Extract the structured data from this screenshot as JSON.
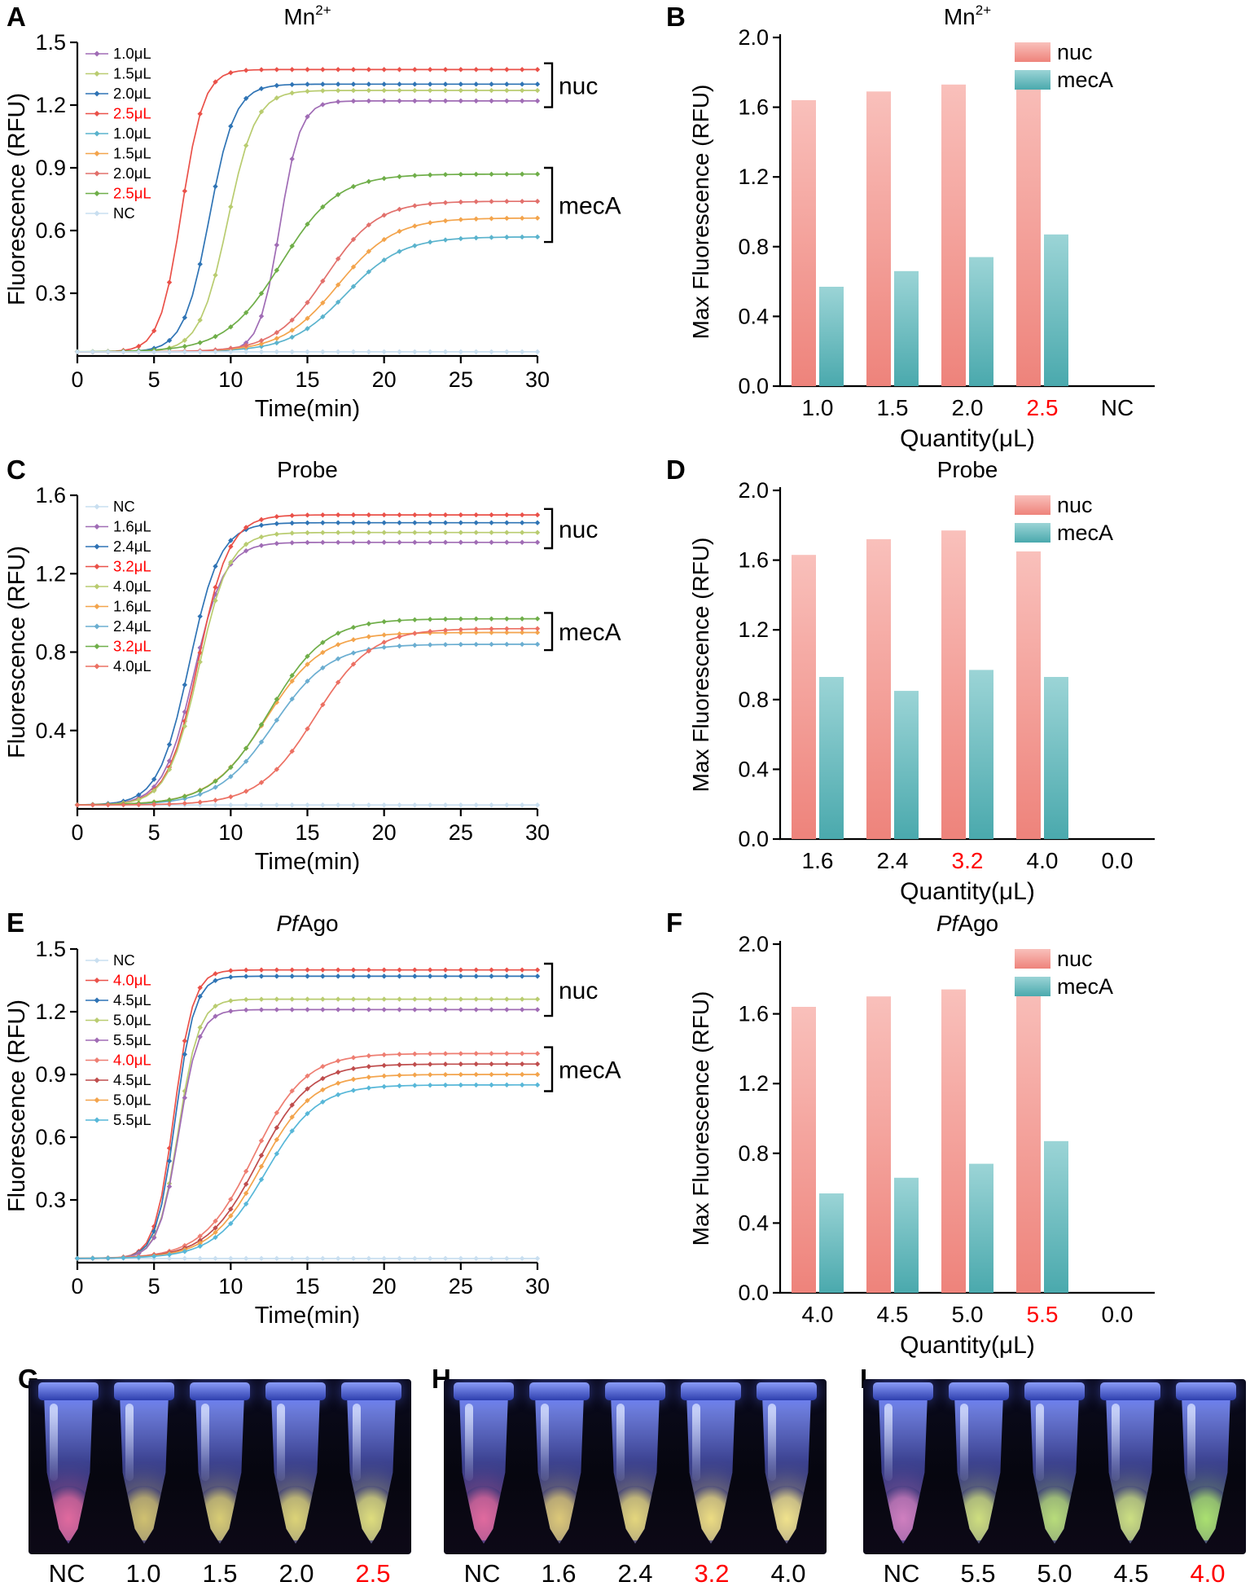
{
  "figure": {
    "panel_labels": [
      "A",
      "B",
      "C",
      "D",
      "E",
      "F",
      "G",
      "H",
      "I"
    ]
  },
  "colors": {
    "red_text": "#ff0000",
    "axis": "#000000"
  },
  "chart_data": [
    {
      "id": "A",
      "type": "line",
      "title": {
        "text": "Mn",
        "sup": "2+"
      },
      "xlabel": "Time(min)",
      "ylabel": "Fluorescence (RFU)",
      "xlim": [
        0,
        30
      ],
      "ylim": [
        0,
        1.5
      ],
      "xticks": [
        0,
        5,
        10,
        15,
        20,
        25,
        30
      ],
      "yticks": [
        0.3,
        0.6,
        0.9,
        1.2,
        1.5
      ],
      "ytick_labels": [
        "0.3",
        "0.6",
        "0.9",
        "1.2",
        "1.5"
      ],
      "series": [
        {
          "name": "1.0μL",
          "color": "#a06cb5",
          "red": false,
          "plateau": 1.22,
          "t50": 13.2,
          "k": 1.5
        },
        {
          "name": "1.5μL",
          "color": "#b9cc70",
          "red": false,
          "plateau": 1.27,
          "t50": 9.8,
          "k": 1.1
        },
        {
          "name": "2.0μL",
          "color": "#2f74b5",
          "red": false,
          "plateau": 1.3,
          "t50": 8.6,
          "k": 1.2
        },
        {
          "name": "2.5μL",
          "color": "#ea5149",
          "red": true,
          "plateau": 1.37,
          "t50": 6.8,
          "k": 1.4
        },
        {
          "name": "1.0μL",
          "color": "#5ab3cd",
          "red": false,
          "plateau": 0.57,
          "t50": 17.5,
          "k": 0.55
        },
        {
          "name": "1.5μL",
          "color": "#f3a44c",
          "red": false,
          "plateau": 0.66,
          "t50": 17.0,
          "k": 0.55
        },
        {
          "name": "2.0μL",
          "color": "#e2706c",
          "red": false,
          "plateau": 0.74,
          "t50": 16.2,
          "k": 0.6
        },
        {
          "name": "2.5μL",
          "color": "#6fae49",
          "red": true,
          "plateau": 0.87,
          "t50": 13.3,
          "k": 0.55
        },
        {
          "name": "NC",
          "color": "#c9dff0",
          "red": false,
          "flat": true,
          "plateau": 0.02,
          "t50": 0,
          "k": 0
        }
      ],
      "groups": [
        {
          "label": "nuc",
          "y_top": 1.4,
          "y_bottom": 1.19
        },
        {
          "label": "mecA",
          "y_top": 0.9,
          "y_bottom": 0.545
        }
      ]
    },
    {
      "id": "B",
      "type": "bar",
      "title": {
        "text": "Mn",
        "sup": "2+"
      },
      "xlabel": "Quantity(μL)",
      "ylabel": "Max Fluorescence (RFU)",
      "ylim": [
        0,
        2.0
      ],
      "yticks": [
        0.0,
        0.4,
        0.8,
        1.2,
        1.6,
        2.0
      ],
      "ytick_labels": [
        "0.0",
        "0.4",
        "0.8",
        "1.2",
        "1.6",
        "2.0"
      ],
      "categories": [
        {
          "label": "1.0",
          "red": false
        },
        {
          "label": "1.5",
          "red": false
        },
        {
          "label": "2.0",
          "red": false
        },
        {
          "label": "2.5",
          "red": true
        },
        {
          "label": "NC",
          "red": false
        }
      ],
      "series": [
        {
          "name": "nuc",
          "values": [
            1.64,
            1.69,
            1.73,
            1.81,
            0
          ],
          "color_top": "#f9c0bb",
          "color_bottom": "#ee837b"
        },
        {
          "name": "mecA",
          "values": [
            0.57,
            0.66,
            0.74,
            0.87,
            0
          ],
          "color_top": "#9bd4d6",
          "color_bottom": "#4aa9ad"
        }
      ]
    },
    {
      "id": "C",
      "type": "line",
      "title": {
        "text": "Probe"
      },
      "xlabel": "Time(min)",
      "ylabel": "Fluorescence (RFU)",
      "xlim": [
        0,
        30
      ],
      "ylim": [
        0,
        1.6
      ],
      "xticks": [
        0,
        5,
        10,
        15,
        20,
        25,
        30
      ],
      "yticks": [
        0.4,
        0.8,
        1.2,
        1.6
      ],
      "ytick_labels": [
        "0.4",
        "0.8",
        "1.2",
        "1.6"
      ],
      "series": [
        {
          "name": "NC",
          "color": "#c9dff0",
          "red": false,
          "flat": true,
          "plateau": 0.02,
          "t50": 0,
          "k": 0
        },
        {
          "name": "1.6μL",
          "color": "#a06cb5",
          "red": false,
          "plateau": 1.36,
          "t50": 7.6,
          "k": 1.0
        },
        {
          "name": "2.4μL",
          "color": "#2f74b5",
          "red": false,
          "plateau": 1.46,
          "t50": 7.3,
          "k": 1.0
        },
        {
          "name": "3.2μL",
          "color": "#ea5149",
          "red": true,
          "plateau": 1.5,
          "t50": 7.9,
          "k": 1.0
        },
        {
          "name": "4.0μL",
          "color": "#b9cc70",
          "red": false,
          "plateau": 1.41,
          "t50": 7.9,
          "k": 1.0
        },
        {
          "name": "1.6μL",
          "color": "#f3a44c",
          "red": false,
          "plateau": 0.9,
          "t50": 12.3,
          "k": 0.55
        },
        {
          "name": "2.4μL",
          "color": "#6baed1",
          "red": false,
          "plateau": 0.84,
          "t50": 12.8,
          "k": 0.55
        },
        {
          "name": "3.2μL",
          "color": "#6fae49",
          "red": true,
          "plateau": 0.97,
          "t50": 12.5,
          "k": 0.55
        },
        {
          "name": "4.0μL",
          "color": "#ec7063",
          "red": false,
          "plateau": 0.92,
          "t50": 15.5,
          "k": 0.55
        }
      ],
      "groups": [
        {
          "label": "nuc",
          "y_top": 1.53,
          "y_bottom": 1.33
        },
        {
          "label": "mecA",
          "y_top": 1.0,
          "y_bottom": 0.81
        }
      ]
    },
    {
      "id": "D",
      "type": "bar",
      "title": {
        "text": "Probe"
      },
      "xlabel": "Quantity(μL)",
      "ylabel": "Max Fluorescence (RFU)",
      "ylim": [
        0,
        2.0
      ],
      "yticks": [
        0.0,
        0.4,
        0.8,
        1.2,
        1.6,
        2.0
      ],
      "ytick_labels": [
        "0.0",
        "0.4",
        "0.8",
        "1.2",
        "1.6",
        "2.0"
      ],
      "categories": [
        {
          "label": "1.6",
          "red": false
        },
        {
          "label": "2.4",
          "red": false
        },
        {
          "label": "3.2",
          "red": true
        },
        {
          "label": "4.0",
          "red": false
        },
        {
          "label": "0.0",
          "red": false
        }
      ],
      "series": [
        {
          "name": "nuc",
          "values": [
            1.63,
            1.72,
            1.77,
            1.65,
            0
          ],
          "color_top": "#f9c0bb",
          "color_bottom": "#ee837b"
        },
        {
          "name": "mecA",
          "values": [
            0.93,
            0.85,
            0.97,
            0.93,
            0
          ],
          "color_top": "#9bd4d6",
          "color_bottom": "#4aa9ad"
        }
      ]
    },
    {
      "id": "E",
      "type": "line",
      "title": {
        "italic": "Pf",
        "text": "Ago"
      },
      "xlabel": "Time(min)",
      "ylabel": "Fluorescence (RFU)",
      "xlim": [
        0,
        30
      ],
      "ylim": [
        0,
        1.5
      ],
      "xticks": [
        0,
        5,
        10,
        15,
        20,
        25,
        30
      ],
      "yticks": [
        0.3,
        0.6,
        0.9,
        1.2,
        1.5
      ],
      "ytick_labels": [
        "0.3",
        "0.6",
        "0.9",
        "1.2",
        "1.5"
      ],
      "series": [
        {
          "name": "NC",
          "color": "#c9dff0",
          "red": false,
          "flat": true,
          "plateau": 0.02,
          "t50": 0,
          "k": 0
        },
        {
          "name": "4.0μL",
          "color": "#ea5149",
          "red": true,
          "plateau": 1.4,
          "t50": 6.3,
          "k": 1.6
        },
        {
          "name": "4.5μL",
          "color": "#2f74b5",
          "red": false,
          "plateau": 1.37,
          "t50": 6.4,
          "k": 1.6
        },
        {
          "name": "5.0μL",
          "color": "#b9cc70",
          "red": false,
          "plateau": 1.26,
          "t50": 6.6,
          "k": 1.5
        },
        {
          "name": "5.5μL",
          "color": "#a06cb5",
          "red": false,
          "plateau": 1.21,
          "t50": 6.6,
          "k": 1.5
        },
        {
          "name": "4.0μL",
          "color": "#ee7e72",
          "red": true,
          "plateau": 1.0,
          "t50": 11.5,
          "k": 0.6
        },
        {
          "name": "4.5μL",
          "color": "#bf4d4d",
          "red": false,
          "plateau": 0.95,
          "t50": 11.8,
          "k": 0.6
        },
        {
          "name": "5.0μL",
          "color": "#f3a44c",
          "red": false,
          "plateau": 0.9,
          "t50": 12.0,
          "k": 0.6
        },
        {
          "name": "5.5μL",
          "color": "#57b7d8",
          "red": false,
          "plateau": 0.85,
          "t50": 12.3,
          "k": 0.6
        }
      ],
      "groups": [
        {
          "label": "nuc",
          "y_top": 1.43,
          "y_bottom": 1.18
        },
        {
          "label": "mecA",
          "y_top": 1.03,
          "y_bottom": 0.82
        }
      ]
    },
    {
      "id": "F",
      "type": "bar",
      "title": {
        "italic": "Pf",
        "text": "Ago"
      },
      "xlabel": "Quantity(μL)",
      "ylabel": "Max Fluorescence (RFU)",
      "ylim": [
        0,
        2.0
      ],
      "yticks": [
        0.0,
        0.4,
        0.8,
        1.2,
        1.6,
        2.0
      ],
      "ytick_labels": [
        "0.0",
        "0.4",
        "0.8",
        "1.2",
        "1.6",
        "2.0"
      ],
      "categories": [
        {
          "label": "4.0",
          "red": false
        },
        {
          "label": "4.5",
          "red": false
        },
        {
          "label": "5.0",
          "red": false
        },
        {
          "label": "5.5",
          "red": true
        },
        {
          "label": "0.0",
          "red": false
        }
      ],
      "series": [
        {
          "name": "nuc",
          "values": [
            1.64,
            1.7,
            1.74,
            1.81,
            0
          ],
          "color_top": "#f9c0bb",
          "color_bottom": "#ee837b"
        },
        {
          "name": "mecA",
          "values": [
            0.57,
            0.66,
            0.74,
            0.87,
            0
          ],
          "color_top": "#9bd4d6",
          "color_bottom": "#4aa9ad"
        }
      ]
    }
  ],
  "photos": [
    {
      "panel": "G",
      "labels": [
        {
          "text": "NC",
          "red": false
        },
        {
          "text": "1.0",
          "red": false
        },
        {
          "text": "1.5",
          "red": false
        },
        {
          "text": "2.0",
          "red": false
        },
        {
          "text": "2.5",
          "red": true
        }
      ],
      "liquids": [
        "#e06a9e",
        "#cfc070",
        "#d8cc74",
        "#dcd377",
        "#dedd7d"
      ]
    },
    {
      "panel": "H",
      "labels": [
        {
          "text": "NC",
          "red": false
        },
        {
          "text": "1.6",
          "red": false
        },
        {
          "text": "2.4",
          "red": false
        },
        {
          "text": "3.2",
          "red": true
        },
        {
          "text": "4.0",
          "red": false
        }
      ],
      "liquids": [
        "#e06a9e",
        "#dcc878",
        "#e4d67d",
        "#ecdc82",
        "#f0e28c"
      ]
    },
    {
      "panel": "I",
      "labels": [
        {
          "text": "NC",
          "red": false
        },
        {
          "text": "5.5",
          "red": false
        },
        {
          "text": "5.0",
          "red": false
        },
        {
          "text": "4.5",
          "red": false
        },
        {
          "text": "4.0",
          "red": true
        }
      ],
      "liquids": [
        "#cf7fbf",
        "#cede7f",
        "#b8dc7a",
        "#ccdf82",
        "#aae070"
      ]
    }
  ]
}
